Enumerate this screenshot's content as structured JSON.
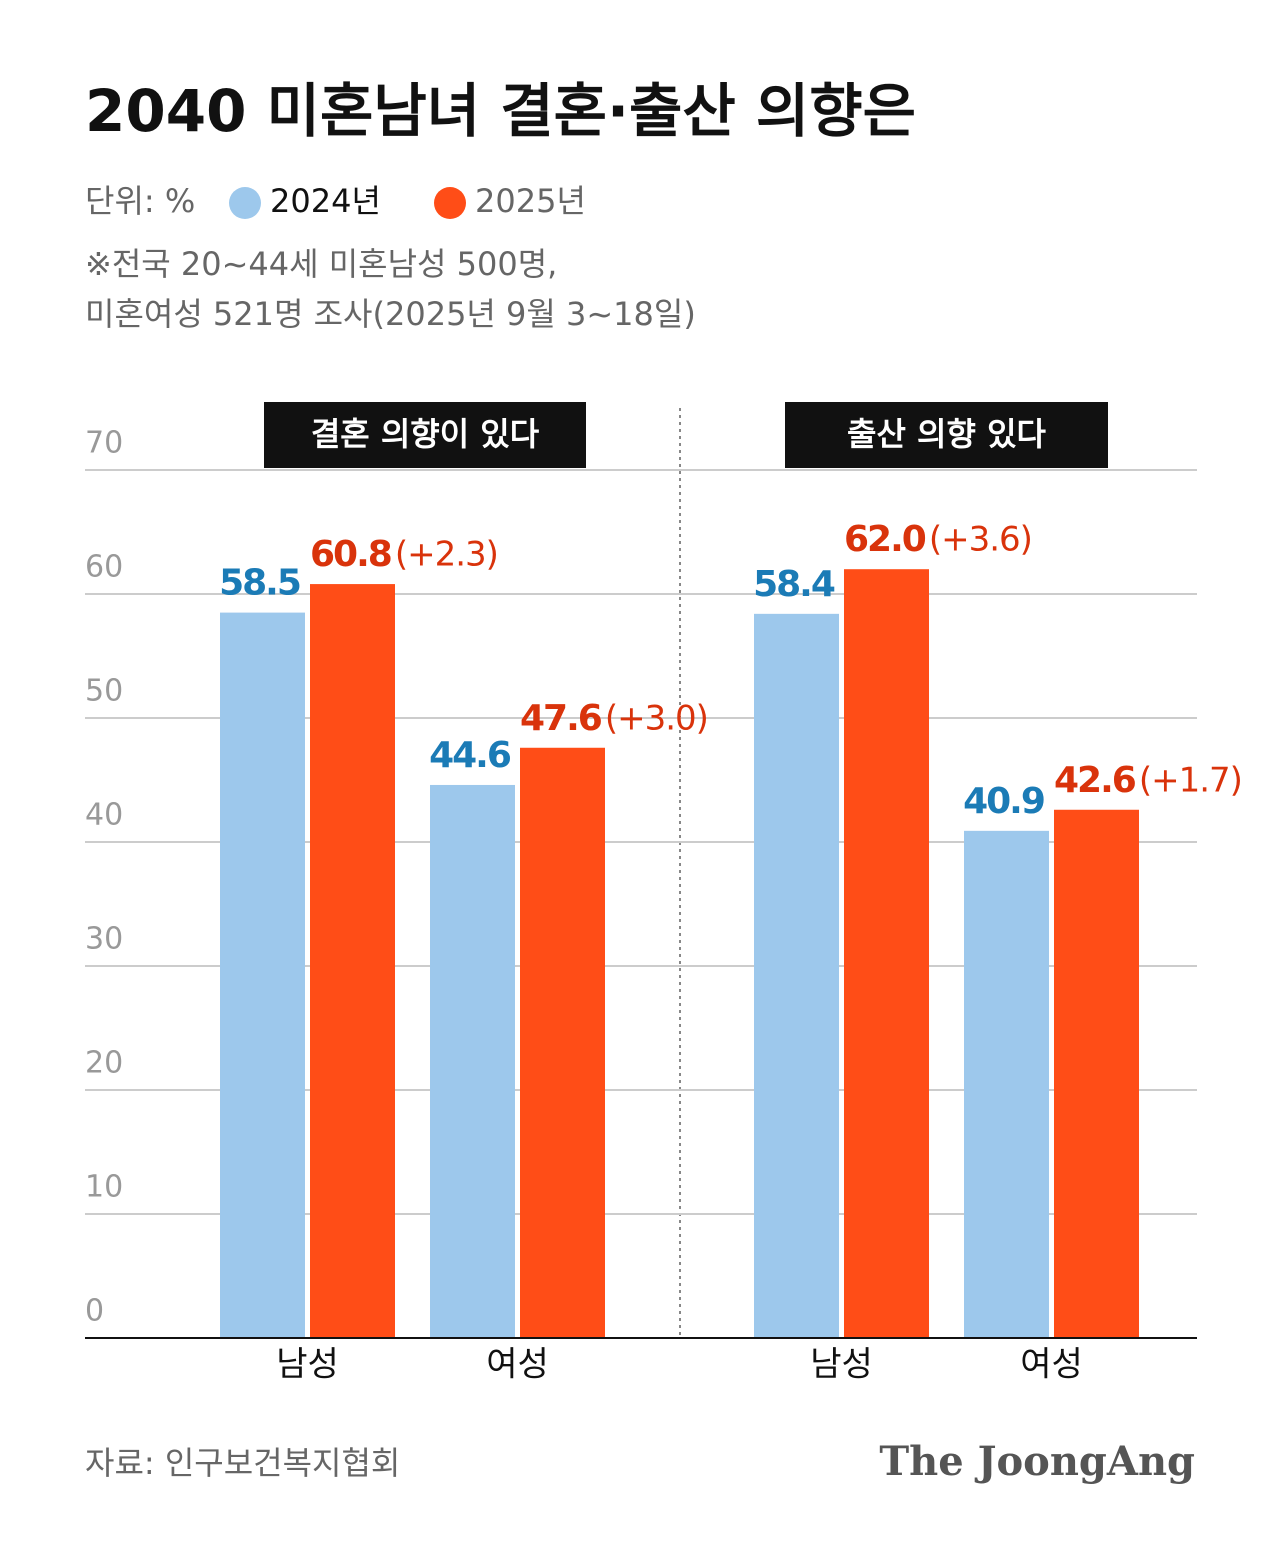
{
  "chart_data": {
    "type": "bar",
    "title": "2040 미혼남녀 결혼·출산 의향은",
    "unit_label": "단위: %",
    "notes": [
      "※전국 20~44세 미혼남성 500명,",
      "미혼여성 521명 조사(2025년 9월 3~18일)"
    ],
    "legend": [
      {
        "name": "2024년",
        "color": "#9dc8ec",
        "label_color": "#1b7bb6"
      },
      {
        "name": "2025년",
        "color": "#ff4d17",
        "label_color": "#d9330b"
      }
    ],
    "ylim": [
      0,
      70
    ],
    "yticks": [
      0,
      10,
      20,
      30,
      40,
      50,
      60,
      70
    ],
    "grid": true,
    "panels": [
      {
        "title": "결혼 의향이 있다",
        "categories": [
          "남성",
          "여성"
        ],
        "series": [
          {
            "values": [
              58.5,
              44.6
            ]
          },
          {
            "values": [
              60.8,
              47.6
            ],
            "changes": [
              "(+2.3)",
              "(+3.0)"
            ]
          }
        ]
      },
      {
        "title": "출산 의향 있다",
        "categories": [
          "남성",
          "여성"
        ],
        "series": [
          {
            "values": [
              58.4,
              40.9
            ]
          },
          {
            "values": [
              62,
              42.6
            ],
            "value_labels": [
              "62.0",
              "42.6"
            ],
            "changes": [
              "(+3.6)",
              "(+1.7)"
            ]
          }
        ]
      }
    ],
    "source": "자료: 인구보건복지협회",
    "brand": "The JoongAng"
  }
}
